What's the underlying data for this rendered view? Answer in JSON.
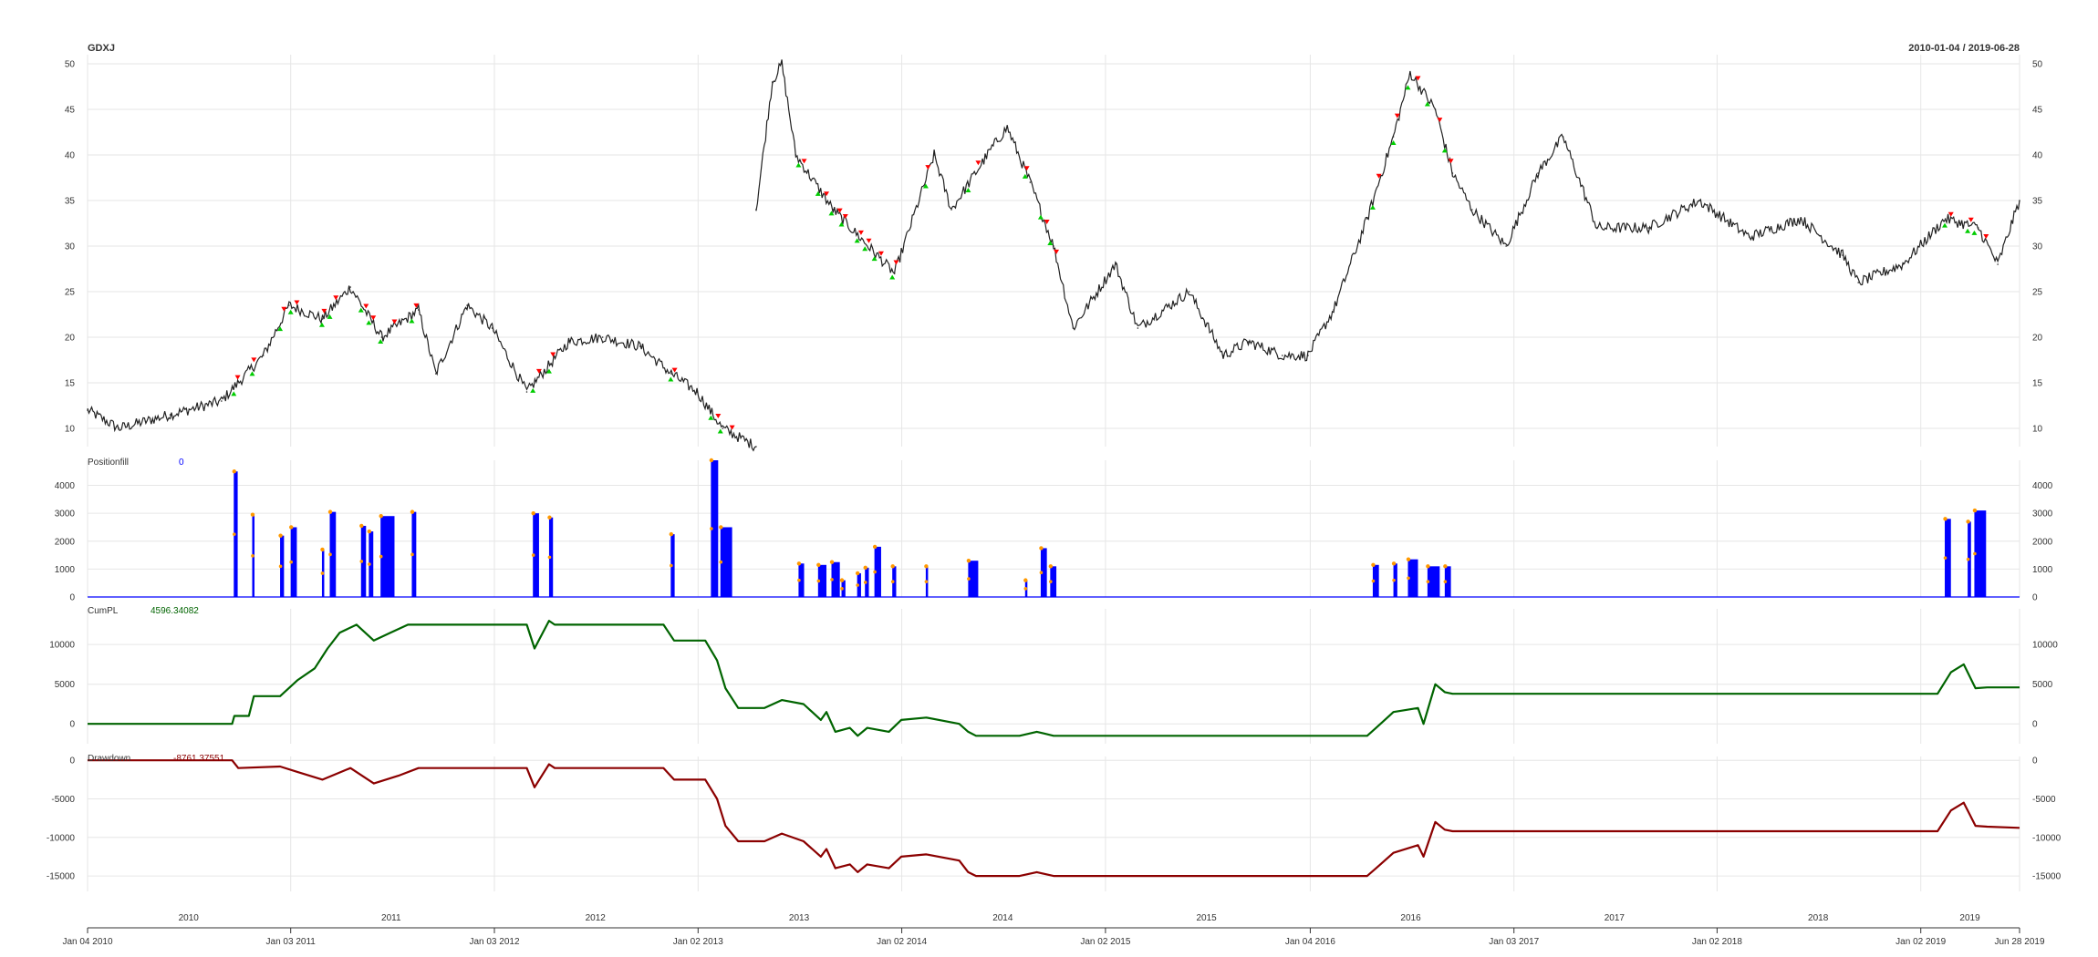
{
  "header": {
    "symbol": "GDXJ",
    "date_range": "2010-01-04 / 2019-06-28"
  },
  "colors": {
    "price_line": "#222222",
    "position_bar": "#0000ff",
    "fill_marker": "#ff9900",
    "cum_pl": "#006400",
    "drawdown": "#8b0000",
    "signal_up": "#00cc00",
    "signal_down": "#ff0000",
    "grid": "#e6e6e6",
    "position_value_label": "#0000ff"
  },
  "chart_data": [
    {
      "panel": "price",
      "type": "line",
      "title": "GDXJ",
      "ylim": [
        8,
        51
      ],
      "yticks": [
        10,
        15,
        20,
        25,
        30,
        35,
        40,
        45,
        50
      ],
      "grid": true,
      "series": [
        {
          "x": [
            "2010-01-04",
            "2010-03-01",
            "2010-06-01",
            "2010-09-01",
            "2010-11-15",
            "2010-12-31",
            "2011-03-01",
            "2011-04-20",
            "2011-06-15",
            "2011-08-20",
            "2011-09-20",
            "2011-11-15",
            "2011-12-30",
            "2012-03-01",
            "2012-05-15",
            "2012-07-15",
            "2012-09-20",
            "2012-11-15",
            "2012-12-31",
            "2013-02-15",
            "2013-04-16"
          ],
          "y": [
            12,
            10,
            11.5,
            13,
            18,
            23.5,
            22,
            25.5,
            20,
            23,
            16,
            23.5,
            21,
            14,
            19.5,
            20,
            19,
            16,
            14,
            10,
            8
          ]
        },
        {
          "x": [
            "2013-04-16",
            "2013-05-15",
            "2013-06-01",
            "2013-06-26",
            "2013-09-01",
            "2013-12-20",
            "2014-03-01",
            "2014-04-01",
            "2014-06-15",
            "2014-07-10",
            "2014-08-20",
            "2014-10-01",
            "2014-11-05",
            "2015-01-20",
            "2015-03-01",
            "2015-06-01",
            "2015-08-01",
            "2015-09-15",
            "2015-11-15",
            "2015-12-31",
            "2016-02-15",
            "2016-04-15",
            "2016-06-01",
            "2016-07-01",
            "2016-08-15",
            "2016-09-15",
            "2016-10-20",
            "2016-12-20",
            "2017-02-15",
            "2017-04-01",
            "2017-06-01",
            "2017-09-01",
            "2017-12-01",
            "2018-03-01",
            "2018-06-01",
            "2018-08-15",
            "2018-09-12",
            "2018-12-01",
            "2019-02-15",
            "2019-04-15",
            "2019-05-20",
            "2019-06-28"
          ],
          "y": [
            34,
            48,
            50,
            40,
            34,
            27,
            40,
            34,
            41,
            43,
            37,
            30,
            21,
            28,
            21,
            25,
            18,
            19.5,
            18,
            18,
            23,
            33,
            42,
            49,
            45,
            38,
            34,
            30,
            38,
            42,
            32,
            32,
            35,
            31,
            33,
            29,
            26,
            28,
            33,
            32,
            28,
            35
          ]
        }
      ]
    },
    {
      "panel": "positionfill",
      "type": "bar",
      "title": "Positionfill",
      "current_value": "0",
      "ylim": [
        0,
        4900
      ],
      "yticks": [
        0,
        1000,
        2000,
        3000,
        4000
      ],
      "grid": true,
      "bars": [
        {
          "start": "2010-09-23",
          "end": "2010-09-30",
          "value": 4500
        },
        {
          "start": "2010-10-26",
          "end": "2010-10-29",
          "value": 2950
        },
        {
          "start": "2010-12-15",
          "end": "2010-12-22",
          "value": 2200
        },
        {
          "start": "2011-01-03",
          "end": "2011-01-14",
          "value": 2500
        },
        {
          "start": "2011-02-28",
          "end": "2011-03-04",
          "value": 1700
        },
        {
          "start": "2011-03-14",
          "end": "2011-03-25",
          "value": 3050
        },
        {
          "start": "2011-05-09",
          "end": "2011-05-18",
          "value": 2550
        },
        {
          "start": "2011-05-23",
          "end": "2011-05-31",
          "value": 2350
        },
        {
          "start": "2011-06-13",
          "end": "2011-07-08",
          "value": 2900
        },
        {
          "start": "2011-08-08",
          "end": "2011-08-16",
          "value": 3050
        },
        {
          "start": "2012-03-12",
          "end": "2012-03-23",
          "value": 3000
        },
        {
          "start": "2012-04-10",
          "end": "2012-04-17",
          "value": 2850
        },
        {
          "start": "2012-11-14",
          "end": "2012-11-21",
          "value": 2250
        },
        {
          "start": "2013-01-25",
          "end": "2013-02-07",
          "value": 4900
        },
        {
          "start": "2013-02-11",
          "end": "2013-03-04",
          "value": 2500
        },
        {
          "start": "2013-07-01",
          "end": "2013-07-11",
          "value": 1200
        },
        {
          "start": "2013-08-05",
          "end": "2013-08-20",
          "value": 1150
        },
        {
          "start": "2013-08-29",
          "end": "2013-09-13",
          "value": 1250
        },
        {
          "start": "2013-09-16",
          "end": "2013-09-23",
          "value": 600
        },
        {
          "start": "2013-10-14",
          "end": "2013-10-21",
          "value": 850
        },
        {
          "start": "2013-10-28",
          "end": "2013-11-04",
          "value": 1050
        },
        {
          "start": "2013-11-14",
          "end": "2013-11-26",
          "value": 1800
        },
        {
          "start": "2013-12-16",
          "end": "2013-12-23",
          "value": 1100
        },
        {
          "start": "2014-02-14",
          "end": "2014-02-18",
          "value": 1100
        },
        {
          "start": "2014-05-01",
          "end": "2014-05-19",
          "value": 1300
        },
        {
          "start": "2014-08-11",
          "end": "2014-08-14",
          "value": 600
        },
        {
          "start": "2014-09-08",
          "end": "2014-09-19",
          "value": 1750
        },
        {
          "start": "2014-09-25",
          "end": "2014-10-06",
          "value": 1100
        },
        {
          "start": "2016-04-25",
          "end": "2016-05-06",
          "value": 1150
        },
        {
          "start": "2016-06-01",
          "end": "2016-06-08",
          "value": 1200
        },
        {
          "start": "2016-06-27",
          "end": "2016-07-15",
          "value": 1350
        },
        {
          "start": "2016-08-01",
          "end": "2016-08-23",
          "value": 1100
        },
        {
          "start": "2016-09-01",
          "end": "2016-09-12",
          "value": 1100
        },
        {
          "start": "2019-02-14",
          "end": "2019-02-25",
          "value": 2800
        },
        {
          "start": "2019-03-27",
          "end": "2019-04-02",
          "value": 2700
        },
        {
          "start": "2019-04-08",
          "end": "2019-04-29",
          "value": 3100
        }
      ]
    },
    {
      "panel": "cumpl",
      "type": "line",
      "title": "CumPL",
      "current_value": "4596.34082",
      "ylim": [
        -2500,
        14500
      ],
      "yticks": [
        0,
        5000,
        10000
      ],
      "grid": true,
      "series": [
        {
          "x": [
            "2010-01-04",
            "2010-09-20",
            "2010-09-24",
            "2010-10-20",
            "2010-10-29",
            "2010-12-15",
            "2011-01-15",
            "2011-02-15",
            "2011-03-10",
            "2011-04-01",
            "2011-05-01",
            "2011-06-01",
            "2011-07-01",
            "2011-08-01",
            "2011-08-20",
            "2012-03-01",
            "2012-03-15",
            "2012-04-10",
            "2012-04-20",
            "2012-11-01",
            "2012-11-20",
            "2013-01-15",
            "2013-02-05",
            "2013-02-20",
            "2013-03-15",
            "2013-05-01",
            "2013-06-01",
            "2013-07-10",
            "2013-08-10",
            "2013-08-20",
            "2013-09-05",
            "2013-10-01",
            "2013-10-15",
            "2013-11-01",
            "2013-12-10",
            "2014-01-01",
            "2014-02-15",
            "2014-04-15",
            "2014-05-01",
            "2014-05-15",
            "2014-08-01",
            "2014-09-01",
            "2014-10-01",
            "2016-04-15",
            "2016-05-01",
            "2016-06-01",
            "2016-07-15",
            "2016-07-25",
            "2016-08-15",
            "2016-09-01",
            "2016-09-15",
            "2019-02-01",
            "2019-02-25",
            "2019-03-20",
            "2019-04-10",
            "2019-05-01",
            "2019-06-28"
          ],
          "y": [
            0,
            0,
            1000,
            1000,
            3500,
            3500,
            5500,
            7000,
            9500,
            11500,
            12500,
            10500,
            11500,
            12500,
            12500,
            12500,
            9500,
            13000,
            12500,
            12500,
            10500,
            10500,
            8000,
            4500,
            2000,
            2000,
            3000,
            2500,
            500,
            1500,
            -1000,
            -500,
            -1500,
            -500,
            -1000,
            500,
            800,
            0,
            -1000,
            -1500,
            -1500,
            -1000,
            -1500,
            -1500,
            -500,
            1500,
            2000,
            0,
            5000,
            4000,
            3800,
            3800,
            6500,
            7500,
            4500,
            4600,
            4596
          ]
        }
      ]
    },
    {
      "panel": "drawdown",
      "type": "line",
      "title": "Drawdown",
      "current_value": "-8761.37551",
      "ylim": [
        -17000,
        500
      ],
      "yticks": [
        0,
        -5000,
        -10000,
        -15000
      ],
      "grid": true,
      "series": [
        {
          "x": [
            "2010-01-04",
            "2010-09-20",
            "2010-10-01",
            "2010-12-15",
            "2011-01-15",
            "2011-03-01",
            "2011-04-20",
            "2011-06-01",
            "2011-07-15",
            "2011-08-20",
            "2012-03-01",
            "2012-03-15",
            "2012-04-10",
            "2012-04-20",
            "2012-11-01",
            "2012-11-20",
            "2013-01-15",
            "2013-02-05",
            "2013-02-20",
            "2013-03-15",
            "2013-05-01",
            "2013-06-01",
            "2013-07-10",
            "2013-08-10",
            "2013-08-20",
            "2013-09-05",
            "2013-10-01",
            "2013-10-15",
            "2013-11-01",
            "2013-12-10",
            "2014-01-01",
            "2014-02-15",
            "2014-04-15",
            "2014-05-01",
            "2014-05-15",
            "2014-08-01",
            "2014-09-01",
            "2014-10-01",
            "2016-04-15",
            "2016-05-01",
            "2016-06-01",
            "2016-07-15",
            "2016-07-25",
            "2016-08-15",
            "2016-09-01",
            "2016-09-15",
            "2019-02-01",
            "2019-02-25",
            "2019-03-20",
            "2019-04-10",
            "2019-05-01",
            "2019-06-28"
          ],
          "y": [
            0,
            0,
            -1000,
            -800,
            -1500,
            -2500,
            -1000,
            -3000,
            -2000,
            -1000,
            -1000,
            -3500,
            -500,
            -1000,
            -1000,
            -2500,
            -2500,
            -5000,
            -8500,
            -10500,
            -10500,
            -9500,
            -10500,
            -12500,
            -11500,
            -14000,
            -13500,
            -14500,
            -13500,
            -14000,
            -12500,
            -12200,
            -13000,
            -14500,
            -15000,
            -15000,
            -14500,
            -15000,
            -15000,
            -14000,
            -12000,
            -11000,
            -12500,
            -8000,
            -9000,
            -9200,
            -9200,
            -6500,
            -5500,
            -8500,
            -8600,
            -8761
          ]
        }
      ]
    }
  ],
  "x_axis": {
    "year_labels": [
      "2010",
      "2011",
      "2012",
      "2013",
      "2014",
      "2015",
      "2016",
      "2017",
      "2018",
      "2019"
    ],
    "date_ticks": [
      {
        "label": "Jan 04 2010",
        "date": "2010-01-04"
      },
      {
        "label": "Jan 03 2011",
        "date": "2011-01-03"
      },
      {
        "label": "Jan 03 2012",
        "date": "2012-01-03"
      },
      {
        "label": "Jan 02 2013",
        "date": "2013-01-02"
      },
      {
        "label": "Jan 02 2014",
        "date": "2014-01-02"
      },
      {
        "label": "Jan 02 2015",
        "date": "2015-01-02"
      },
      {
        "label": "Jan 04 2016",
        "date": "2016-01-04"
      },
      {
        "label": "Jan 03 2017",
        "date": "2017-01-03"
      },
      {
        "label": "Jan 02 2018",
        "date": "2018-01-02"
      },
      {
        "label": "Jan 02 2019",
        "date": "2019-01-02"
      },
      {
        "label": "Jun 28 2019",
        "date": "2019-06-28"
      }
    ]
  }
}
